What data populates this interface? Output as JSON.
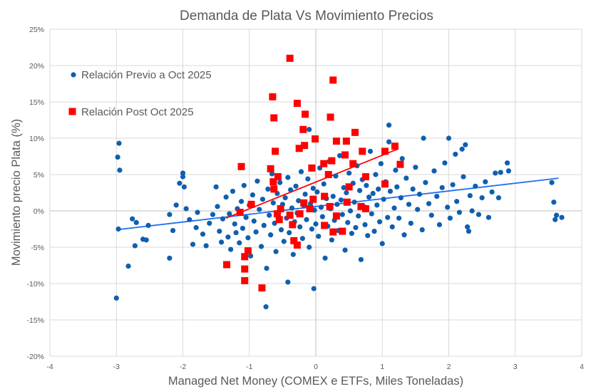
{
  "chart_data": {
    "type": "scatter",
    "title": "Demanda de Plata Vs Movimiento Precios",
    "xlabel": "Managed Net Money (COMEX e ETFs, Miles Toneladas)",
    "ylabel": "Movimiento precio Plata (%)",
    "xlim": [
      -4,
      4
    ],
    "ylim": [
      -20,
      25
    ],
    "x_ticks": [
      "-4",
      "-3",
      "-2",
      "-1",
      "0",
      "1",
      "2",
      "3",
      "4"
    ],
    "y_ticks": [
      "-20%",
      "-15%",
      "-10%",
      "-5%",
      "0%",
      "5%",
      "10%",
      "15%",
      "20%",
      "25%"
    ],
    "grid": true,
    "legend_position": "top-left inside",
    "series": [
      {
        "name": "Relación Previo a Oct 2025",
        "color": "#0F5FAF",
        "marker": "circle",
        "trendline": {
          "color": "#1F6FEF",
          "from": [
            -3.0,
            -2.6
          ],
          "to": [
            3.65,
            4.5
          ]
        },
        "points": [
          [
            -3.0,
            -12.0
          ],
          [
            -2.96,
            9.3
          ],
          [
            -2.98,
            7.4
          ],
          [
            -2.95,
            5.6
          ],
          [
            -2.97,
            -2.5
          ],
          [
            -2.82,
            -7.6
          ],
          [
            -2.72,
            -4.8
          ],
          [
            -2.76,
            -1.1
          ],
          [
            -2.7,
            -1.6
          ],
          [
            -2.6,
            -3.9
          ],
          [
            -2.55,
            -4.0
          ],
          [
            -2.52,
            -2.0
          ],
          [
            -2.2,
            -6.5
          ],
          [
            -2.2,
            -0.5
          ],
          [
            -2.15,
            -2.7
          ],
          [
            -2.1,
            0.8
          ],
          [
            -2.05,
            3.8
          ],
          [
            -2.0,
            5.2
          ],
          [
            -2.0,
            4.7
          ],
          [
            -1.98,
            3.3
          ],
          [
            -1.95,
            0.3
          ],
          [
            -1.9,
            -1.2
          ],
          [
            -1.85,
            -4.6
          ],
          [
            -1.8,
            -2.3
          ],
          [
            -1.78,
            -0.2
          ],
          [
            -1.7,
            -3.2
          ],
          [
            -1.65,
            -4.8
          ],
          [
            -1.6,
            -1.7
          ],
          [
            -1.55,
            -0.5
          ],
          [
            -1.5,
            3.3
          ],
          [
            -1.48,
            0.6
          ],
          [
            -1.45,
            -2.8
          ],
          [
            -1.42,
            -4.3
          ],
          [
            -1.4,
            -1.1
          ],
          [
            -1.35,
            1.9
          ],
          [
            -1.32,
            -3.6
          ],
          [
            -1.3,
            -0.4
          ],
          [
            -1.28,
            -5.3
          ],
          [
            -1.25,
            2.7
          ],
          [
            -1.22,
            -1.8
          ],
          [
            -1.2,
            -3.0
          ],
          [
            -1.18,
            0.3
          ],
          [
            -1.15,
            -4.4
          ],
          [
            -1.12,
            1.3
          ],
          [
            -1.1,
            -2.4
          ],
          [
            -1.08,
            3.5
          ],
          [
            -1.05,
            -0.9
          ],
          [
            -1.02,
            -3.7
          ],
          [
            -1.0,
            0.8
          ],
          [
            -0.98,
            -6.2
          ],
          [
            -0.95,
            2.2
          ],
          [
            -0.93,
            -1.4
          ],
          [
            -0.9,
            -2.9
          ],
          [
            -0.88,
            4.1
          ],
          [
            -0.85,
            0.2
          ],
          [
            -0.82,
            -4.9
          ],
          [
            -0.8,
            1.6
          ],
          [
            -0.78,
            -2.0
          ],
          [
            -0.75,
            -13.2
          ],
          [
            -0.74,
            -7.9
          ],
          [
            -0.72,
            3.0
          ],
          [
            -0.7,
            -0.6
          ],
          [
            -0.68,
            -3.3
          ],
          [
            -0.66,
            5.1
          ],
          [
            -0.64,
            1.1
          ],
          [
            -0.62,
            -1.7
          ],
          [
            -0.6,
            -5.6
          ],
          [
            -0.58,
            2.4
          ],
          [
            -0.56,
            -0.2
          ],
          [
            -0.54,
            3.9
          ],
          [
            -0.52,
            -2.6
          ],
          [
            -0.5,
            0.9
          ],
          [
            -0.48,
            -4.2
          ],
          [
            -0.46,
            1.8
          ],
          [
            -0.44,
            -1.0
          ],
          [
            -0.42,
            -9.8
          ],
          [
            -0.42,
            4.6
          ],
          [
            -0.4,
            -3.0
          ],
          [
            -0.38,
            2.9
          ],
          [
            -0.36,
            0.4
          ],
          [
            -0.34,
            -6.0
          ],
          [
            -0.32,
            -1.5
          ],
          [
            -0.3,
            3.4
          ],
          [
            -0.28,
            -0.3
          ],
          [
            -0.26,
            1.4
          ],
          [
            -0.24,
            -2.2
          ],
          [
            -0.22,
            5.4
          ],
          [
            -0.2,
            -3.8
          ],
          [
            -0.18,
            0.7
          ],
          [
            -0.16,
            2.3
          ],
          [
            -0.14,
            -1.2
          ],
          [
            -0.12,
            4.4
          ],
          [
            -0.1,
            11.2
          ],
          [
            -0.1,
            -5.0
          ],
          [
            -0.08,
            1.0
          ],
          [
            -0.06,
            -2.5
          ],
          [
            -0.04,
            3.1
          ],
          [
            -0.03,
            -10.7
          ],
          [
            -0.02,
            0.1
          ],
          [
            0.0,
            -1.8
          ],
          [
            0.02,
            2.6
          ],
          [
            0.04,
            -3.5
          ],
          [
            0.06,
            5.9
          ],
          [
            0.08,
            0.5
          ],
          [
            0.1,
            -0.8
          ],
          [
            0.12,
            3.7
          ],
          [
            0.14,
            -6.5
          ],
          [
            0.16,
            1.7
          ],
          [
            0.18,
            -2.1
          ],
          [
            0.2,
            6.8
          ],
          [
            0.22,
            0.3
          ],
          [
            0.24,
            -4.0
          ],
          [
            0.26,
            2.0
          ],
          [
            0.28,
            -1.3
          ],
          [
            0.3,
            4.8
          ],
          [
            0.32,
            0.9
          ],
          [
            0.34,
            -2.7
          ],
          [
            0.36,
            7.6
          ],
          [
            0.38,
            1.5
          ],
          [
            0.4,
            -0.5
          ],
          [
            0.42,
            3.2
          ],
          [
            0.44,
            -5.4
          ],
          [
            0.46,
            2.5
          ],
          [
            0.48,
            -1.6
          ],
          [
            0.5,
            5.2
          ],
          [
            0.52,
            0.0
          ],
          [
            0.54,
            -3.1
          ],
          [
            0.56,
            3.8
          ],
          [
            0.58,
            1.2
          ],
          [
            0.6,
            -2.3
          ],
          [
            0.62,
            6.2
          ],
          [
            0.64,
            -0.7
          ],
          [
            0.66,
            2.8
          ],
          [
            0.68,
            -6.7
          ],
          [
            0.7,
            4.3
          ],
          [
            0.72,
            0.6
          ],
          [
            0.74,
            -1.9
          ],
          [
            0.76,
            3.5
          ],
          [
            0.78,
            -3.4
          ],
          [
            0.8,
            1.9
          ],
          [
            0.82,
            8.2
          ],
          [
            0.84,
            -0.4
          ],
          [
            0.86,
            2.4
          ],
          [
            0.88,
            -2.8
          ],
          [
            0.9,
            5.0
          ],
          [
            0.92,
            0.8
          ],
          [
            0.94,
            3.0
          ],
          [
            0.96,
            -1.5
          ],
          [
            0.98,
            6.5
          ],
          [
            1.0,
            -4.5
          ],
          [
            1.02,
            1.6
          ],
          [
            1.05,
            4.0
          ],
          [
            1.08,
            -0.9
          ],
          [
            1.1,
            11.8
          ],
          [
            1.1,
            9.5
          ],
          [
            1.12,
            2.7
          ],
          [
            1.15,
            -2.2
          ],
          [
            1.18,
            0.4
          ],
          [
            1.2,
            5.6
          ],
          [
            1.22,
            3.3
          ],
          [
            1.25,
            -1.0
          ],
          [
            1.28,
            1.8
          ],
          [
            1.3,
            7.2
          ],
          [
            1.33,
            -3.3
          ],
          [
            1.36,
            4.5
          ],
          [
            1.4,
            0.9
          ],
          [
            1.43,
            -1.7
          ],
          [
            1.46,
            3.0
          ],
          [
            1.5,
            6.0
          ],
          [
            1.53,
            0.2
          ],
          [
            1.56,
            2.3
          ],
          [
            1.6,
            -2.6
          ],
          [
            1.62,
            10.0
          ],
          [
            1.65,
            3.9
          ],
          [
            1.7,
            1.0
          ],
          [
            1.74,
            -0.6
          ],
          [
            1.78,
            5.5
          ],
          [
            1.82,
            2.0
          ],
          [
            1.86,
            -1.9
          ],
          [
            1.9,
            3.2
          ],
          [
            1.94,
            6.6
          ],
          [
            1.98,
            0.5
          ],
          [
            2.0,
            10.0
          ],
          [
            2.02,
            -1.0
          ],
          [
            2.06,
            3.6
          ],
          [
            2.1,
            7.8
          ],
          [
            2.12,
            1.3
          ],
          [
            2.16,
            -0.2
          ],
          [
            2.2,
            8.5
          ],
          [
            2.22,
            4.7
          ],
          [
            2.25,
            9.1
          ],
          [
            2.28,
            -2.2
          ],
          [
            2.3,
            -2.8
          ],
          [
            2.32,
            2.1
          ],
          [
            2.35,
            0.0
          ],
          [
            2.4,
            3.4
          ],
          [
            2.45,
            -0.5
          ],
          [
            2.5,
            1.8
          ],
          [
            2.55,
            4.0
          ],
          [
            2.6,
            -0.9
          ],
          [
            2.65,
            2.6
          ],
          [
            2.7,
            5.2
          ],
          [
            2.75,
            1.8
          ],
          [
            2.78,
            5.3
          ],
          [
            2.88,
            6.6
          ],
          [
            2.9,
            5.5
          ],
          [
            3.55,
            3.9
          ],
          [
            3.58,
            1.2
          ],
          [
            3.6,
            -1.2
          ],
          [
            3.62,
            -0.6
          ],
          [
            3.7,
            -0.9
          ]
        ]
      },
      {
        "name": "Relación Post Oct 2025",
        "color": "#FF0000",
        "marker": "square",
        "trendline": {
          "color": "#FF0000",
          "from": [
            -1.35,
            -1.0
          ],
          "to": [
            1.23,
            8.5
          ]
        },
        "points": [
          [
            -0.39,
            21.0
          ],
          [
            0.26,
            18.0
          ],
          [
            -0.65,
            15.7
          ],
          [
            -0.28,
            14.8
          ],
          [
            -0.63,
            12.8
          ],
          [
            -0.16,
            13.3
          ],
          [
            0.22,
            12.9
          ],
          [
            -0.19,
            11.2
          ],
          [
            0.59,
            10.8
          ],
          [
            0.31,
            9.6
          ],
          [
            -0.01,
            9.9
          ],
          [
            0.46,
            9.6
          ],
          [
            -0.25,
            8.6
          ],
          [
            -0.61,
            8.2
          ],
          [
            0.7,
            8.2
          ],
          [
            1.04,
            8.2
          ],
          [
            1.19,
            8.9
          ],
          [
            -0.17,
            9.0
          ],
          [
            0.44,
            7.7
          ],
          [
            0.24,
            6.9
          ],
          [
            1.27,
            6.4
          ],
          [
            -1.12,
            6.1
          ],
          [
            -0.68,
            5.8
          ],
          [
            -0.06,
            5.9
          ],
          [
            0.12,
            6.5
          ],
          [
            0.56,
            6.5
          ],
          [
            -0.57,
            4.7
          ],
          [
            0.19,
            5.0
          ],
          [
            0.75,
            4.7
          ],
          [
            -0.64,
            4.0
          ],
          [
            1.04,
            3.7
          ],
          [
            0.5,
            3.3
          ],
          [
            -0.63,
            3.0
          ],
          [
            0.13,
            2.0
          ],
          [
            -0.18,
            1.1
          ],
          [
            -0.97,
            0.9
          ],
          [
            0.47,
            1.2
          ],
          [
            -0.04,
            1.6
          ],
          [
            0.21,
            0.6
          ],
          [
            0.68,
            0.6
          ],
          [
            0.75,
            0.3
          ],
          [
            -0.53,
            0.3
          ],
          [
            -1.14,
            -0.2
          ],
          [
            -0.58,
            -0.4
          ],
          [
            -0.39,
            -0.6
          ],
          [
            -0.24,
            -0.4
          ],
          [
            0.31,
            -0.7
          ],
          [
            -0.55,
            -1.2
          ],
          [
            -0.35,
            -1.9
          ],
          [
            0.13,
            -2.0
          ],
          [
            0.4,
            -2.8
          ],
          [
            0.26,
            -2.9
          ],
          [
            -0.33,
            -4.1
          ],
          [
            -0.28,
            -4.7
          ],
          [
            -1.02,
            -5.5
          ],
          [
            -1.07,
            -6.3
          ],
          [
            -1.34,
            -7.4
          ],
          [
            -1.07,
            -8.0
          ],
          [
            -1.07,
            -9.6
          ],
          [
            -0.81,
            -10.6
          ],
          [
            -0.09,
            0.3
          ]
        ]
      }
    ]
  }
}
